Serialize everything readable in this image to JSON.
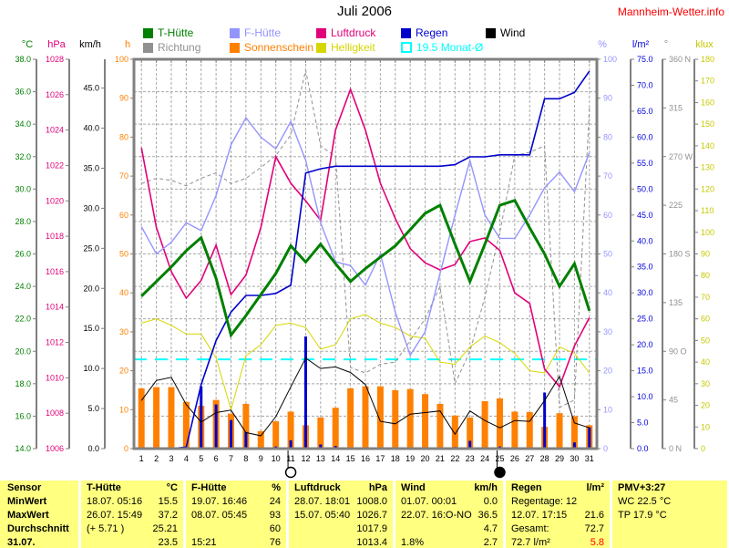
{
  "site": "Mannheim-Wetter.info",
  "title": "Juli 2006",
  "colors": {
    "t_huette": "#008000",
    "f_huette": "#9494FF",
    "luftdruck": "#E2007A",
    "regen": "#0000CD",
    "wind": "#000000",
    "richtung": "#909090",
    "sonnenschein": "#FF8000",
    "helligkeit": "#D6D600",
    "monat_avg": "#00FFFF",
    "grid": "#A8A8A8",
    "border": "#808080",
    "table_bg": "#FFFF80",
    "site_link": "#FF0000",
    "red_value": "#FF0000",
    "pct_axis": "#9494FF",
    "lm2_axis": "#0000E0",
    "deg_axis": "#909090",
    "klux_axis": "#C8C800"
  },
  "legend": {
    "rows": [
      [
        {
          "label": "T-Hütte",
          "color": "t_huette",
          "swatch": "filled"
        },
        {
          "label": "F-Hütte",
          "color": "f_huette",
          "swatch": "filled"
        },
        {
          "label": "Luftdruck",
          "color": "luftdruck",
          "swatch": "filled"
        },
        {
          "label": "Regen",
          "color": "regen",
          "swatch": "filled"
        },
        {
          "label": "Wind",
          "color": "wind",
          "swatch": "filled"
        }
      ],
      [
        {
          "label": "Richtung",
          "color": "richtung",
          "swatch": "filled"
        },
        {
          "label": "Sonnenschein",
          "color": "sonnenschein",
          "swatch": "filled"
        },
        {
          "label": "Helligkeit",
          "color": "helligkeit",
          "swatch": "filled"
        },
        {
          "label": "19.5 Monat-Ø",
          "color": "monat_avg",
          "swatch": "open"
        }
      ]
    ]
  },
  "axes": {
    "left": [
      {
        "unit": "°C",
        "color": "t_huette",
        "min": 14,
        "max": 38,
        "step": 2,
        "decimals": 1
      },
      {
        "unit": "hPa",
        "color": "luftdruck",
        "min": 1006,
        "max": 1028,
        "step": 2,
        "decimals": 0
      },
      {
        "unit": "km/h",
        "color": "wind",
        "min": 0,
        "max": 48.6,
        "step": 5,
        "decimals": 1,
        "label_max": 45
      },
      {
        "unit": "h",
        "color": "sonnenschein",
        "min": 0,
        "max": 100,
        "step": 10,
        "decimals": 0
      }
    ],
    "right": [
      {
        "unit": "%",
        "color": "pct_axis",
        "min": 0,
        "max": 100,
        "step": 10,
        "decimals": 0
      },
      {
        "unit": "l/m²",
        "color": "lm2_axis",
        "min": 0,
        "max": 75,
        "step": 5,
        "decimals": 1
      },
      {
        "unit": "°",
        "color": "deg_axis",
        "min": 0,
        "max": 360,
        "step": 45,
        "decimals": 0,
        "names": {
          "0": "0  N",
          "90": "90  O",
          "180": "180 S",
          "270": "270 W",
          "360": "360 N"
        }
      },
      {
        "unit": "klux",
        "color": "klux_axis",
        "min": 0,
        "max": 180,
        "step": 10,
        "decimals": 0
      }
    ]
  },
  "chart_data": {
    "type": "multi-axis weather chart (lines + bars)",
    "title": "Juli 2006",
    "days": 31,
    "x_tick_labels": "1-31 (day of month)",
    "grid": "dashed, vertical per day, horizontal per 2 °C",
    "monat_avg_line": {
      "label": "19.5 Monat-Ø",
      "value": 19.5,
      "axis": "°C",
      "color": "monat_avg"
    },
    "moons": [
      {
        "day": 11,
        "phase": "full"
      },
      {
        "day": 25,
        "phase": "new"
      }
    ],
    "series": [
      {
        "name": "T-Hütte",
        "axis": "°C",
        "color": "t_huette",
        "type": "line",
        "width": 3,
        "values": [
          23.4,
          24.3,
          25.2,
          26.2,
          27.0,
          24.5,
          21.0,
          22.2,
          23.5,
          24.8,
          26.5,
          25.5,
          26.6,
          25.4,
          24.3,
          25.1,
          25.8,
          26.5,
          27.5,
          28.5,
          29.0,
          26.6,
          24.3,
          26.6,
          29.0,
          29.3,
          27.6,
          26.0,
          24.0,
          25.4,
          22.5
        ]
      },
      {
        "name": "F-Hütte",
        "axis": "%",
        "color": "f_huette",
        "type": "line",
        "width": 1.4,
        "values": [
          57,
          50,
          53,
          58,
          56,
          65,
          78,
          85,
          80,
          77,
          84,
          74,
          58,
          48,
          47,
          42,
          50,
          35,
          24,
          30,
          45,
          60,
          74,
          60,
          54,
          54,
          60,
          67,
          71,
          66,
          76
        ]
      },
      {
        "name": "Luftdruck",
        "axis": "hPa",
        "color": "luftdruck",
        "type": "line",
        "width": 1.6,
        "values": [
          1023.0,
          1018.5,
          1016.0,
          1014.5,
          1015.5,
          1017.5,
          1014.7,
          1015.8,
          1018.5,
          1022.5,
          1021.0,
          1020.0,
          1018.9,
          1024.0,
          1026.3,
          1024.0,
          1021.0,
          1019.0,
          1017.3,
          1016.5,
          1016.1,
          1016.4,
          1017.7,
          1017.9,
          1017.2,
          1014.8,
          1014.2,
          1010.5,
          1009.5,
          1011.8,
          1013.4
        ]
      },
      {
        "name": "Regen (Tagessumme)",
        "axis": "l/m²",
        "color": "regen",
        "type": "bar",
        "values": [
          0,
          0,
          0,
          0.3,
          12.0,
          8.5,
          5.5,
          3.2,
          0,
          0.4,
          1.6,
          21.6,
          0.8,
          0.5,
          0,
          0,
          0,
          0,
          0,
          0,
          0,
          0.3,
          1.5,
          0,
          0.4,
          0,
          0,
          10.8,
          0,
          1.2,
          4.1
        ]
      },
      {
        "name": "Regen (kumuliert)",
        "axis": "l/m²",
        "color": "regen",
        "type": "line-cumulative",
        "width": 1.6,
        "values": "derived from Regen (Tagessumme), total 72.7"
      },
      {
        "name": "Wind",
        "axis": "km/h",
        "color": "wind",
        "type": "line",
        "width": 1,
        "values": [
          6.0,
          8.5,
          8.9,
          5.5,
          3.3,
          4.5,
          4.8,
          2.0,
          1.6,
          4.0,
          7.7,
          11.3,
          10.0,
          10.2,
          9.5,
          8.0,
          3.4,
          3.1,
          4.3,
          4.5,
          4.7,
          1.8,
          4.7,
          3.5,
          2.6,
          3.5,
          3.4,
          6.0,
          9.0,
          3.2,
          2.6
        ]
      },
      {
        "name": "Richtung",
        "axis": "°",
        "color": "richtung",
        "type": "line-dashed",
        "width": 1,
        "values": [
          245,
          250,
          248,
          243,
          250,
          255,
          245,
          250,
          260,
          271,
          290,
          350,
          280,
          270,
          75,
          70,
          78,
          80,
          100,
          120,
          150,
          60,
          90,
          140,
          200,
          271,
          274,
          280,
          38,
          45,
          315
        ]
      },
      {
        "name": "Sonnenschein",
        "axis": "h",
        "color": "sonnenschein",
        "type": "bar",
        "values": [
          15.5,
          15.8,
          15.8,
          12.0,
          11.0,
          12.5,
          9.0,
          11.5,
          4.5,
          7.0,
          9.5,
          6.0,
          8.0,
          10.5,
          15.5,
          16.0,
          16.0,
          15.0,
          15.3,
          14.0,
          11.5,
          8.5,
          8.0,
          12.2,
          12.9,
          9.5,
          9.4,
          5.6,
          9.1,
          8.3,
          6.0
        ]
      },
      {
        "name": "Helligkeit",
        "axis": "klux",
        "color": "helligkeit",
        "type": "line",
        "width": 1,
        "values": [
          58,
          60,
          57,
          53,
          53,
          42,
          18,
          43,
          48,
          57,
          58,
          56,
          46,
          48,
          60,
          62,
          58,
          56,
          52,
          51,
          40,
          39,
          47,
          52,
          49,
          44,
          36,
          35,
          47,
          44,
          35
        ]
      }
    ]
  },
  "table": {
    "col_headers": [
      {
        "name": "Sensor",
        "unit": ""
      },
      {
        "name": "T-Hütte",
        "unit": "°C"
      },
      {
        "name": "F-Hütte",
        "unit": "%"
      },
      {
        "name": "Luftdruck",
        "unit": "hPa"
      },
      {
        "name": "Wind",
        "unit": "km/h"
      },
      {
        "name": "Regen",
        "unit": "l/m²"
      },
      {
        "name": "PMV+3:27",
        "unit": ""
      }
    ],
    "rows": [
      {
        "label": "MinWert",
        "cells": [
          {
            "left": "18.07.  05:16",
            "right": "15.5"
          },
          {
            "left": "19.07.  16:46",
            "right": "24"
          },
          {
            "left": "28.07.  18:01",
            "right": "1008.0"
          },
          {
            "left": "01.07.  00:01",
            "right": "0.0"
          },
          {
            "left": "Regentage: 12",
            "right": ""
          },
          {
            "left": "WC 22.5 °C",
            "right": ""
          }
        ]
      },
      {
        "label": "MaxWert",
        "cells": [
          {
            "left": "26.07.  15:49",
            "right": "37.2"
          },
          {
            "left": "08.07.  05:45",
            "right": "93"
          },
          {
            "left": "15.07.  05:40",
            "right": "1026.7"
          },
          {
            "left": "22.07.  16:O-NO",
            "right": "36.5"
          },
          {
            "left": "12.07.  17:15",
            "right": "21.6"
          },
          {
            "left": "TP 17.9 °C",
            "right": ""
          }
        ]
      },
      {
        "label": "Durchschnitt",
        "cells": [
          {
            "left": "(+ 5.71 )",
            "right": "25.21"
          },
          {
            "left": "",
            "right": "60"
          },
          {
            "left": "",
            "right": "1017.9"
          },
          {
            "left": "",
            "right": "4.7"
          },
          {
            "left": "Gesamt:",
            "right": "72.7"
          },
          {
            "left": "",
            "right": ""
          }
        ]
      },
      {
        "label": "31.07.",
        "cells": [
          {
            "left": "",
            "right": "23.5"
          },
          {
            "left": "15:21",
            "right": "76"
          },
          {
            "left": "",
            "right": "1013.4"
          },
          {
            "left": "1.8%",
            "right": "2.7"
          },
          {
            "left": "72.7 l/m²",
            "right": "5.8",
            "right_color": "red_value"
          },
          {
            "left": "",
            "right": ""
          }
        ]
      }
    ]
  }
}
